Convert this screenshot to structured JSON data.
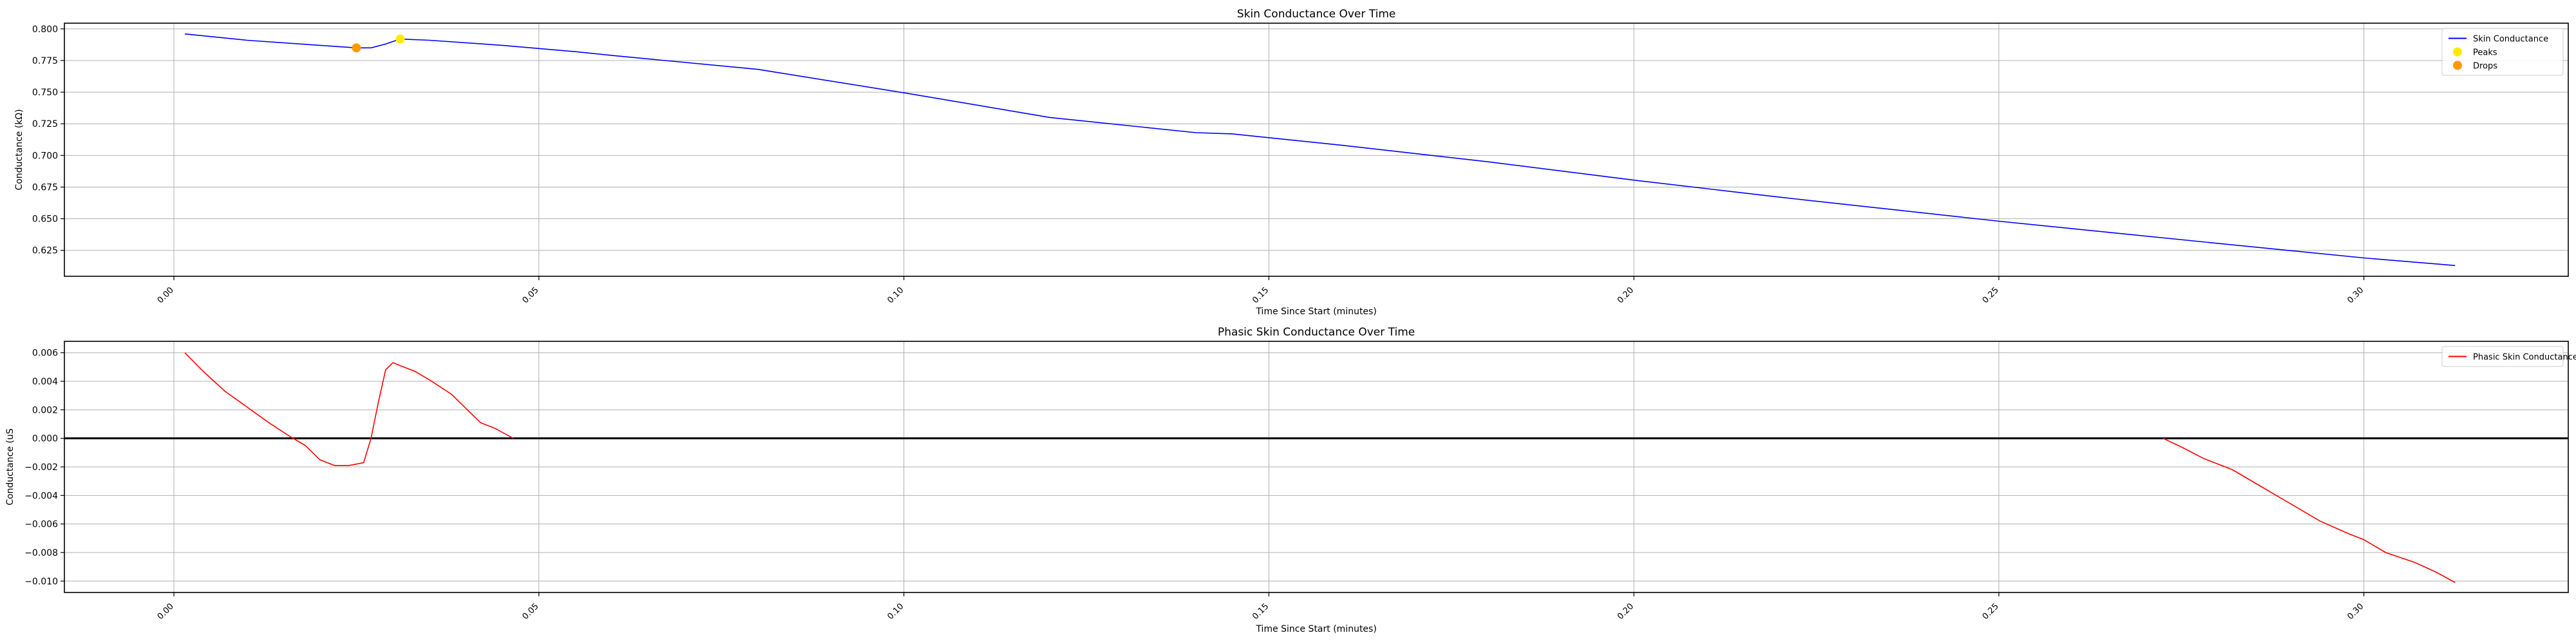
{
  "chart_data": [
    {
      "type": "line",
      "title": "Skin Conductance Over Time",
      "xlabel": "Time Since Start (minutes)",
      "ylabel": "Conductance (kΩ)",
      "xlim": [
        -0.015,
        0.328
      ],
      "ylim": [
        0.6045,
        0.8045
      ],
      "x_ticks": [
        0.0,
        0.05,
        0.1,
        0.15,
        0.2,
        0.25,
        0.3
      ],
      "x_tick_labels": [
        "0.00",
        "0.05",
        "0.10",
        "0.15",
        "0.20",
        "0.25",
        "0.30"
      ],
      "y_ticks": [
        0.625,
        0.65,
        0.675,
        0.7,
        0.725,
        0.75,
        0.775,
        0.8
      ],
      "y_tick_labels": [
        "0.625",
        "0.650",
        "0.675",
        "0.700",
        "0.725",
        "0.750",
        "0.775",
        "0.800"
      ],
      "grid": true,
      "legend_position": "top-right",
      "series": [
        {
          "name": "Skin Conductance",
          "kind": "line",
          "color": "#0000ff",
          "x": [
            0.0015,
            0.01,
            0.02,
            0.025,
            0.027,
            0.029,
            0.031,
            0.035,
            0.045,
            0.055,
            0.06,
            0.08,
            0.1,
            0.12,
            0.14,
            0.145,
            0.16,
            0.18,
            0.2,
            0.22,
            0.25,
            0.28,
            0.3,
            0.3125
          ],
          "y": [
            0.796,
            0.791,
            0.787,
            0.785,
            0.785,
            0.788,
            0.792,
            0.791,
            0.787,
            0.782,
            0.779,
            0.768,
            0.7495,
            0.73,
            0.718,
            0.717,
            0.708,
            0.695,
            0.6805,
            0.667,
            0.648,
            0.6305,
            0.619,
            0.613
          ]
        },
        {
          "name": "Peaks",
          "kind": "marker",
          "color": "#ffeb00",
          "x": [
            0.031
          ],
          "y": [
            0.792
          ]
        },
        {
          "name": "Drops",
          "kind": "marker",
          "color": "#ff9900",
          "x": [
            0.025
          ],
          "y": [
            0.785
          ]
        }
      ]
    },
    {
      "type": "line",
      "title": "Phasic Skin Conductance Over Time",
      "xlabel": "Time Since Start (minutes)",
      "ylabel": "Conductance (uS",
      "xlim": [
        -0.015,
        0.328
      ],
      "ylim": [
        -0.0108,
        0.0068
      ],
      "x_ticks": [
        0.0,
        0.05,
        0.1,
        0.15,
        0.2,
        0.25,
        0.3
      ],
      "x_tick_labels": [
        "0.00",
        "0.05",
        "0.10",
        "0.15",
        "0.20",
        "0.25",
        "0.30"
      ],
      "y_ticks": [
        -0.01,
        -0.008,
        -0.006,
        -0.004,
        -0.002,
        0.0,
        0.002,
        0.004,
        0.006
      ],
      "y_tick_labels": [
        "−0.010",
        "−0.008",
        "−0.006",
        "−0.004",
        "−0.002",
        "0.000",
        "0.002",
        "0.004",
        "0.006"
      ],
      "grid": true,
      "legend_position": "top-right",
      "zero_line": true,
      "series": [
        {
          "name": "Phasic Skin Conductance",
          "kind": "line",
          "color": "#ff0000",
          "segments": [
            {
              "x": [
                0.0015,
                0.004,
                0.007,
                0.01,
                0.013,
                0.016,
                0.018,
                0.02,
                0.022,
                0.024,
                0.026,
                0.027,
                0.028,
                0.029,
                0.03,
                0.031,
                0.033,
                0.035,
                0.038,
                0.04,
                0.042,
                0.044,
                0.0465
              ],
              "y": [
                0.006,
                0.0047,
                0.0033,
                0.0022,
                0.0011,
                0.0001,
                -0.0005,
                -0.0015,
                -0.0019,
                -0.0019,
                -0.0017,
                0.0,
                0.0025,
                0.0048,
                0.0053,
                0.0051,
                0.0047,
                0.0041,
                0.0031,
                0.0021,
                0.0011,
                0.0007,
                0.0
              ]
            },
            {
              "x": [
                0.2725,
                0.275,
                0.278,
                0.282,
                0.286,
                0.29,
                0.294,
                0.298,
                0.3,
                0.303,
                0.307,
                0.31,
                0.3125
              ],
              "y": [
                0.0,
                -0.0006,
                -0.0014,
                -0.0022,
                -0.0034,
                -0.0046,
                -0.0058,
                -0.0067,
                -0.0071,
                -0.008,
                -0.0087,
                -0.0094,
                -0.0101
              ]
            }
          ]
        }
      ]
    }
  ]
}
